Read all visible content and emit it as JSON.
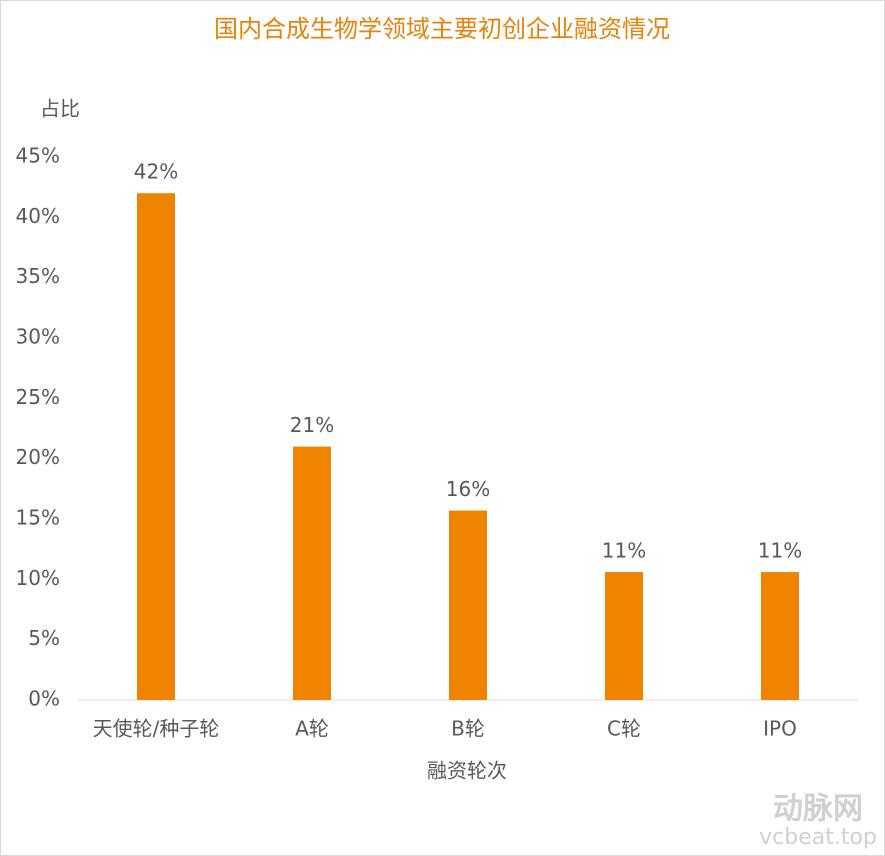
{
  "chart_data": {
    "type": "bar",
    "title": "国内合成生物学领域主要初创企业融资情况",
    "y_label": "占比",
    "x_label": "融资轮次",
    "categories": [
      "天使轮/种子轮",
      "A轮",
      "B轮",
      "C轮",
      "IPO"
    ],
    "values": [
      42,
      21,
      15.7,
      10.6,
      10.6
    ],
    "value_labels": [
      "42%",
      "21%",
      "16%",
      "11%",
      "11%"
    ],
    "color": "#f08300",
    "ylim": [
      0,
      45
    ],
    "yticks": [
      {
        "value": 0,
        "label": "0%"
      },
      {
        "value": 5,
        "label": "5%"
      },
      {
        "value": 10,
        "label": "10%"
      },
      {
        "value": 15,
        "label": "15%"
      },
      {
        "value": 20,
        "label": "20%"
      },
      {
        "value": 25,
        "label": "25%"
      },
      {
        "value": 30,
        "label": "30%"
      },
      {
        "value": 35,
        "label": "35%"
      },
      {
        "value": 40,
        "label": "40%"
      },
      {
        "value": 45,
        "label": "45%"
      }
    ],
    "grid": false,
    "annotations": [
      "动脉网",
      "vcbeat.top"
    ]
  }
}
